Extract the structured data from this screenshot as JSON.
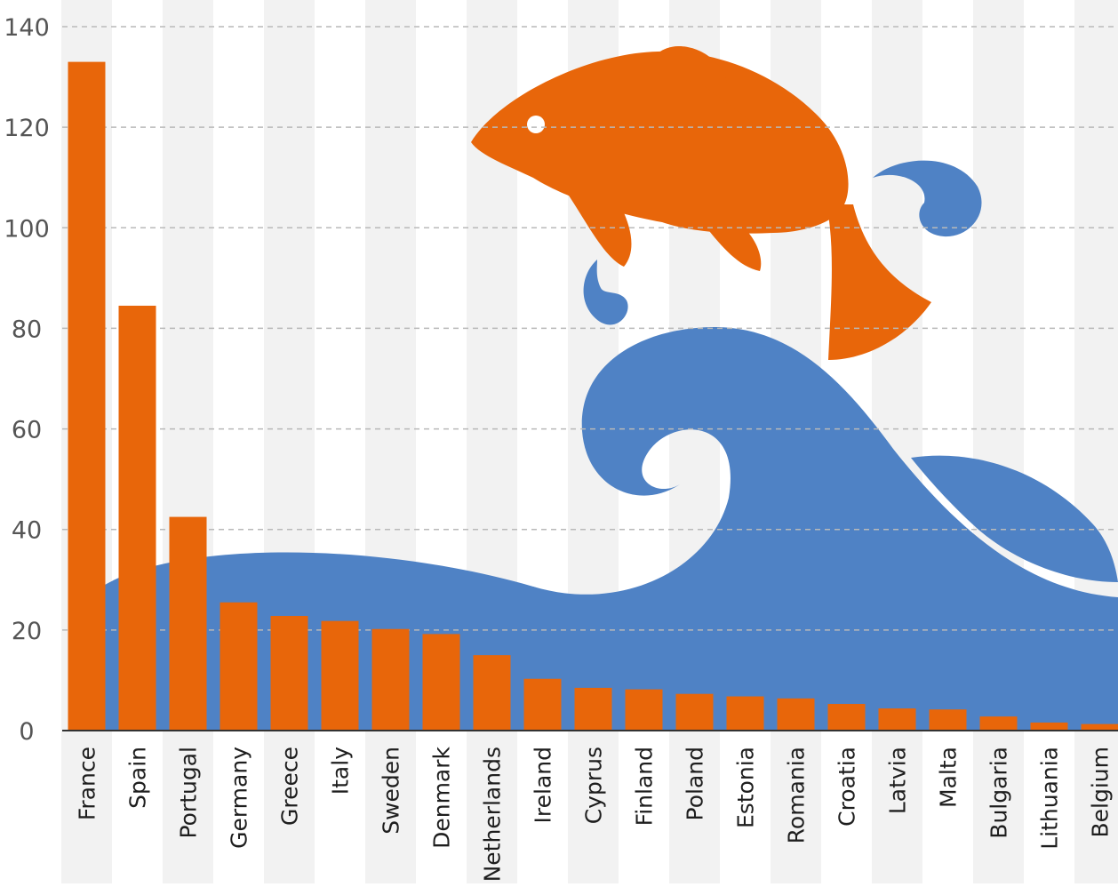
{
  "chart_data": {
    "type": "bar",
    "title": "",
    "xlabel": "",
    "ylabel": "",
    "ylim": [
      0,
      140
    ],
    "yticks": [
      0,
      20,
      40,
      60,
      80,
      100,
      120,
      140
    ],
    "grid": true,
    "categories": [
      "France",
      "Spain",
      "Portugal",
      "Germany",
      "Greece",
      "Italy",
      "Sweden",
      "Denmark",
      "Netherlands",
      "Ireland",
      "Cyprus",
      "Finland",
      "Poland",
      "Estonia",
      "Romania",
      "Croatia",
      "Latvia",
      "Malta",
      "Bulgaria",
      "Lithuania",
      "Belgium"
    ],
    "values": [
      133,
      84.5,
      42.5,
      25.5,
      22.8,
      21.8,
      20.2,
      19.2,
      15.0,
      10.3,
      8.5,
      8.2,
      7.3,
      6.8,
      6.4,
      5.3,
      4.4,
      4.2,
      2.8,
      1.6,
      1.3
    ]
  },
  "colors": {
    "bar": "#e8660a",
    "wave": "#4f82c5",
    "fish": "#e8660a",
    "band": "#f2f2f2",
    "grid": "#b9b9b9"
  },
  "decoration": {
    "icons": [
      "jumping-fish-icon",
      "ocean-wave-icon",
      "water-splash-icon"
    ]
  }
}
